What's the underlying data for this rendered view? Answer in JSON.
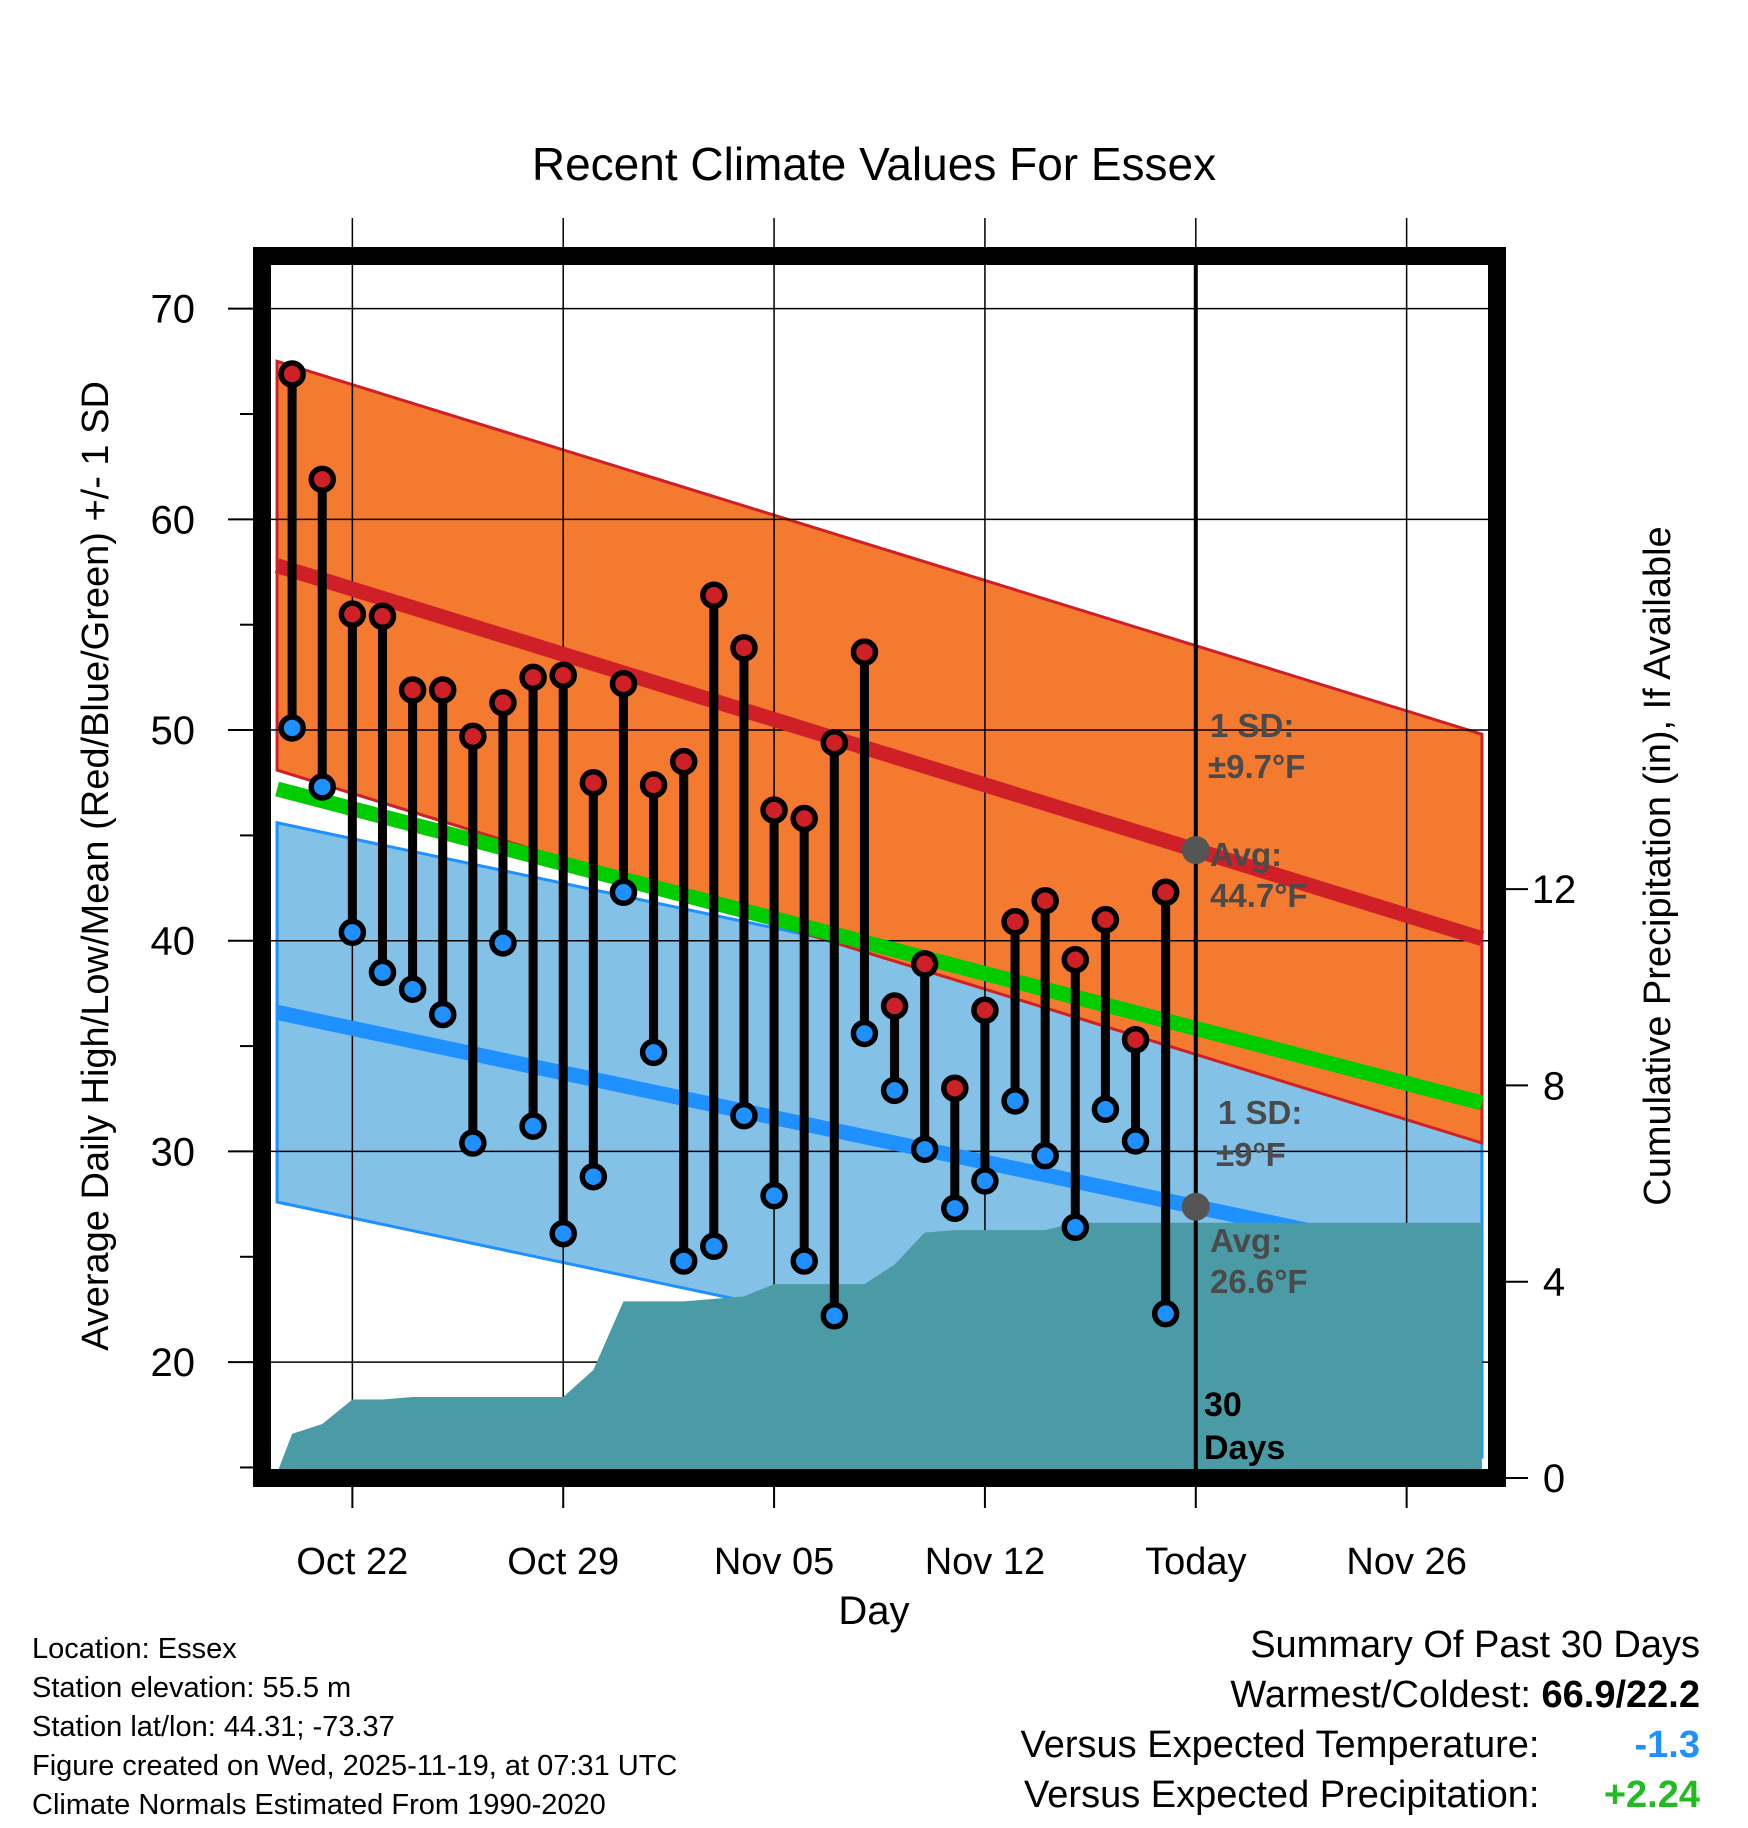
{
  "colors": {
    "high_band": "#f47a30",
    "high_line": "#cf2027",
    "low_band": "#84c1e6",
    "low_line": "#1e90ff",
    "mean_line": "#00cc00",
    "precip": "#4a9ba6",
    "high_marker": "#cf2027",
    "low_marker": "#1e90ff",
    "avg_marker": "#555555",
    "summary_temp": "#1e90ff",
    "summary_precip": "#22bb22"
  },
  "chart_data": {
    "type": "line",
    "title": "Recent Climate Values For Essex",
    "xlabel": "Day",
    "ylabel": "Average Daily High/Low/Mean (Red/Blue/Green) +/- 1 SD",
    "y2label": "Cumulative Precipitation (in), If Available",
    "ylim": [
      14.5,
      72.5
    ],
    "y_ticks": [
      20,
      30,
      40,
      50,
      60,
      70
    ],
    "y2lim": [
      0,
      24.9
    ],
    "y2_ticks": [
      0,
      4,
      8,
      12
    ],
    "xlim": [
      -31,
      10
    ],
    "x_ticks": [
      {
        "day": -28,
        "label": "Oct 22"
      },
      {
        "day": -21,
        "label": "Oct 29"
      },
      {
        "day": -14,
        "label": "Nov 05"
      },
      {
        "day": -7,
        "label": "Nov 12"
      },
      {
        "day": 0,
        "label": "Today"
      },
      {
        "day": 7,
        "label": "Nov 26"
      }
    ],
    "today_day": 0,
    "normals": {
      "days": [
        -30.5,
        9.5
      ],
      "avg_high": [
        57.8,
        40.1
      ],
      "high_sd": 9.7,
      "avg_low": [
        36.6,
        24.5
      ],
      "low_sd": 9.0,
      "avg_mean": [
        47.2,
        32.3
      ]
    },
    "daily": {
      "days": [
        -30,
        -29,
        -28,
        -27,
        -26,
        -25,
        -24,
        -23,
        -22,
        -21,
        -20,
        -19,
        -18,
        -17,
        -16,
        -15,
        -14,
        -13,
        -12,
        -11,
        -10,
        -9,
        -8,
        -7,
        -6,
        -5,
        -4,
        -3,
        -2,
        -1
      ],
      "highs": [
        66.9,
        61.9,
        55.5,
        55.4,
        51.9,
        51.9,
        49.7,
        51.3,
        52.5,
        52.6,
        47.5,
        52.2,
        47.4,
        48.5,
        56.4,
        53.9,
        46.2,
        45.8,
        49.4,
        53.7,
        36.9,
        38.9,
        33.0,
        36.7,
        40.9,
        41.9,
        39.1,
        41.0,
        35.3,
        42.3
      ],
      "lows": [
        50.1,
        47.3,
        40.4,
        38.5,
        37.7,
        36.5,
        30.4,
        39.9,
        31.2,
        26.1,
        28.8,
        42.3,
        34.7,
        24.8,
        25.5,
        31.7,
        27.9,
        24.8,
        22.2,
        35.6,
        32.9,
        30.1,
        27.3,
        28.6,
        32.4,
        29.8,
        26.4,
        32.0,
        30.5,
        22.3
      ]
    },
    "precip_cumulative": {
      "days": [
        -30.5,
        -30,
        -29,
        -28,
        -27,
        -26,
        -25,
        -24,
        -23,
        -22,
        -21,
        -20,
        -19,
        -18,
        -17,
        -16,
        -15,
        -14,
        -13,
        -12,
        -11,
        -10,
        -9,
        -8,
        -7,
        -6,
        -5,
        -4,
        -3,
        -2,
        -1,
        0,
        9.5
      ],
      "values": [
        0.1,
        0.9,
        1.1,
        1.6,
        1.6,
        1.65,
        1.65,
        1.65,
        1.65,
        1.65,
        1.65,
        2.2,
        3.6,
        3.6,
        3.6,
        3.65,
        3.7,
        3.95,
        3.95,
        3.95,
        3.95,
        4.35,
        5.0,
        5.05,
        5.05,
        5.05,
        5.05,
        5.2,
        5.2,
        5.2,
        5.2,
        5.2,
        5.2
      ]
    },
    "annotations": {
      "high_sd_title": "1 SD:",
      "high_sd_value": "±9.7°F",
      "high_avg_title": "Avg:",
      "high_avg_value": "44.7°F",
      "low_sd_title": "1 SD:",
      "low_sd_value": "±9°F",
      "low_avg_title": "Avg:",
      "low_avg_value": "26.6°F",
      "days_number": "30",
      "days_word": "Days"
    }
  },
  "info": {
    "location": "Location: Essex",
    "elevation": "Station elevation: 55.5 m",
    "latlon": "Station lat/lon: 44.31; -73.37",
    "created": "Figure created on Wed, 2025-11-19, at 07:31 UTC",
    "normals": "Climate Normals Estimated From 1990-2020"
  },
  "summary": {
    "title": "Summary Of Past 30 Days",
    "warmest_label": "Warmest/Coldest:",
    "warmest_value": "66.9/22.2",
    "temp_label": "Versus Expected Temperature:",
    "temp_value": "-1.3",
    "precip_label": "Versus Expected Precipitation:",
    "precip_value": "+2.24"
  }
}
